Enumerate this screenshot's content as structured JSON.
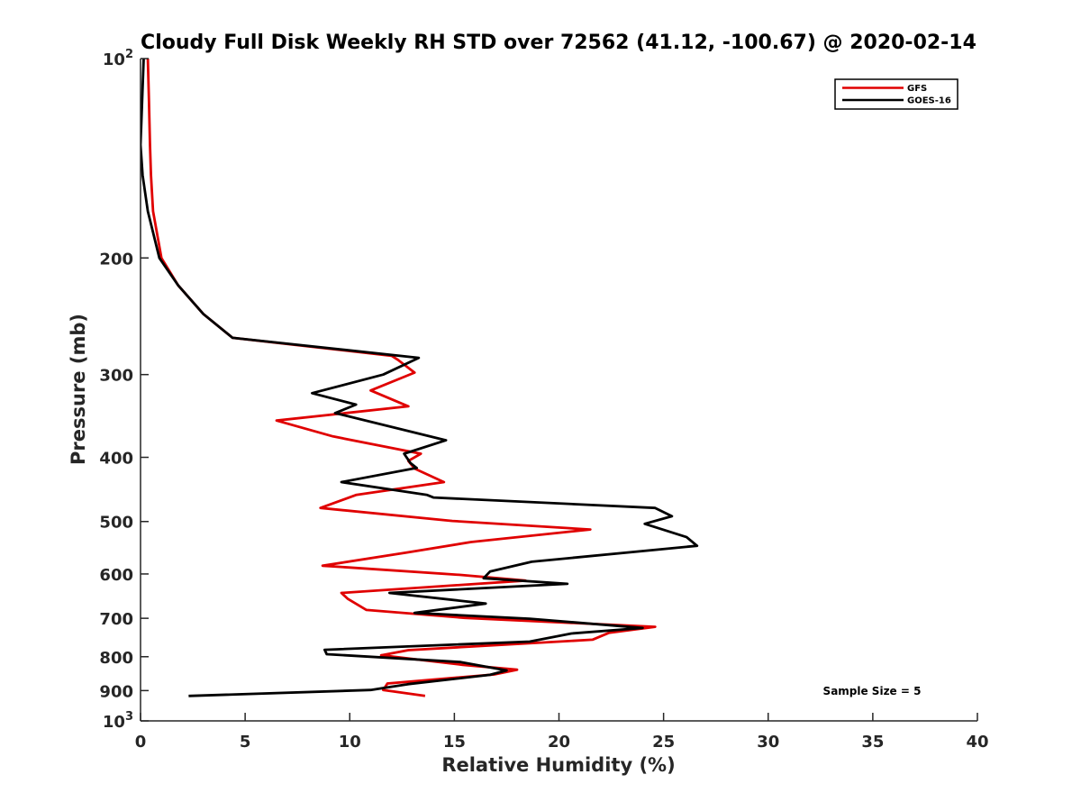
{
  "chart_data": {
    "type": "line",
    "title": "Cloudy Full Disk Weekly RH STD over 72562 (41.12, -100.67) @ 2020-02-14",
    "xlabel": "Relative Humidity (%)",
    "ylabel": "Pressure (mb)",
    "xlim": [
      0,
      40
    ],
    "ylim": [
      100,
      1000
    ],
    "y_scale": "log",
    "y_reversed": true,
    "x_ticks": [
      0,
      5,
      10,
      15,
      20,
      25,
      30,
      35,
      40
    ],
    "y_ticks": [
      {
        "value": 100,
        "label": "10",
        "sup": "2"
      },
      {
        "value": 200,
        "label": "200"
      },
      {
        "value": 300,
        "label": "300"
      },
      {
        "value": 400,
        "label": "400"
      },
      {
        "value": 500,
        "label": "500"
      },
      {
        "value": 600,
        "label": "600"
      },
      {
        "value": 700,
        "label": "700"
      },
      {
        "value": 800,
        "label": "800"
      },
      {
        "value": 900,
        "label": "900"
      },
      {
        "value": 1000,
        "label": "10",
        "sup": "3"
      }
    ],
    "grid": false,
    "legend_position": "top-right",
    "annotation": "Sample Size = 5",
    "series": [
      {
        "name": "GFS",
        "color": "#e00000",
        "points": [
          [
            0.35,
            100
          ],
          [
            0.4,
            115
          ],
          [
            0.45,
            135
          ],
          [
            0.5,
            150
          ],
          [
            0.6,
            170
          ],
          [
            1.0,
            200
          ],
          [
            1.8,
            220
          ],
          [
            3.0,
            243
          ],
          [
            4.4,
            264
          ],
          [
            12.0,
            281
          ],
          [
            12.3,
            285
          ],
          [
            13.1,
            298
          ],
          [
            11.0,
            317
          ],
          [
            12.8,
            335
          ],
          [
            6.5,
            352
          ],
          [
            9.2,
            372
          ],
          [
            13.4,
            395
          ],
          [
            12.8,
            405
          ],
          [
            13.1,
            416
          ],
          [
            14.5,
            436
          ],
          [
            10.3,
            456
          ],
          [
            8.6,
            477
          ],
          [
            14.9,
            499
          ],
          [
            21.5,
            514
          ],
          [
            15.8,
            537
          ],
          [
            12.7,
            557
          ],
          [
            8.7,
            583
          ],
          [
            15.3,
            602
          ],
          [
            18.4,
            614
          ],
          [
            9.6,
            641
          ],
          [
            9.9,
            654
          ],
          [
            10.8,
            680
          ],
          [
            15.5,
            699
          ],
          [
            24.6,
            721
          ],
          [
            22.4,
            736
          ],
          [
            21.6,
            754
          ],
          [
            12.8,
            782
          ],
          [
            11.5,
            796
          ],
          [
            15.4,
            823
          ],
          [
            18.0,
            837
          ],
          [
            16.9,
            851
          ],
          [
            11.8,
            878
          ],
          [
            11.6,
            898
          ],
          [
            13.6,
            917
          ]
        ]
      },
      {
        "name": "GOES-16",
        "color": "#000000",
        "points": [
          [
            0.15,
            100
          ],
          [
            0.0,
            135
          ],
          [
            0.1,
            150
          ],
          [
            0.35,
            170
          ],
          [
            0.9,
            200
          ],
          [
            1.8,
            220
          ],
          [
            3.0,
            243
          ],
          [
            4.4,
            264
          ],
          [
            13.3,
            283
          ],
          [
            11.6,
            300
          ],
          [
            8.2,
            320
          ],
          [
            10.3,
            333
          ],
          [
            9.3,
            343
          ],
          [
            14.6,
            377
          ],
          [
            12.6,
            395
          ],
          [
            12.9,
            408
          ],
          [
            13.2,
            415
          ],
          [
            9.6,
            436
          ],
          [
            13.7,
            456
          ],
          [
            14.0,
            460
          ],
          [
            24.6,
            477
          ],
          [
            25.4,
            491
          ],
          [
            24.1,
            504
          ],
          [
            26.1,
            528
          ],
          [
            26.6,
            544
          ],
          [
            18.7,
            575
          ],
          [
            16.7,
            595
          ],
          [
            16.4,
            609
          ],
          [
            20.4,
            621
          ],
          [
            11.9,
            641
          ],
          [
            16.5,
            665
          ],
          [
            13.1,
            687
          ],
          [
            18.6,
            701
          ],
          [
            24.0,
            724
          ],
          [
            20.6,
            738
          ],
          [
            18.6,
            759
          ],
          [
            8.8,
            781
          ],
          [
            8.9,
            793
          ],
          [
            15.3,
            815
          ],
          [
            17.5,
            839
          ],
          [
            16.7,
            852
          ],
          [
            12.8,
            880
          ],
          [
            11.0,
            898
          ],
          [
            2.3,
            917
          ]
        ]
      }
    ]
  }
}
